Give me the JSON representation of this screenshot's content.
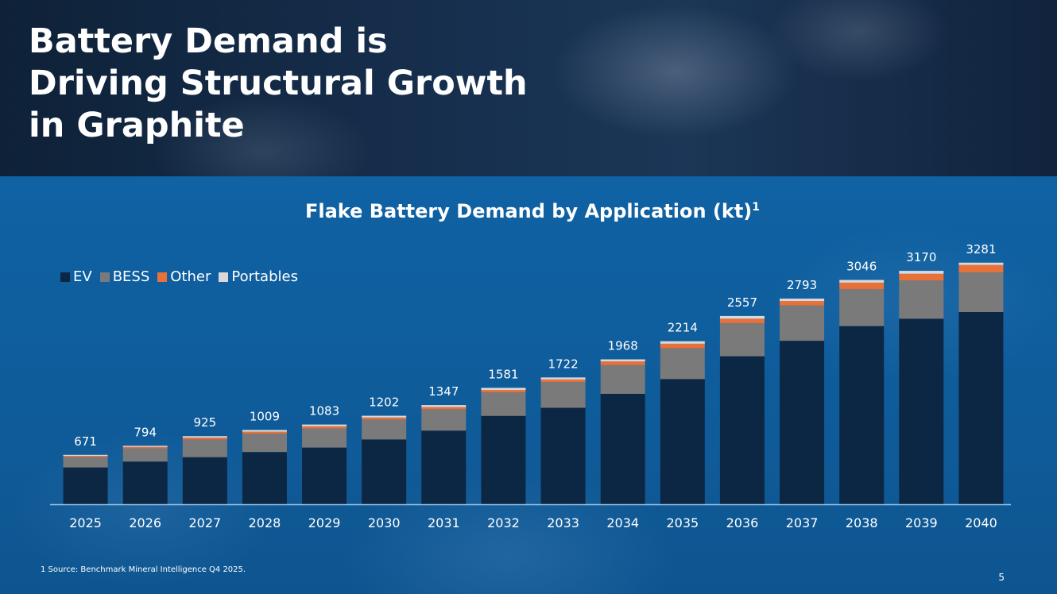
{
  "slide": {
    "title": "Battery Demand is Driving Structural Growth in Graphite",
    "footnote": "1 Source: Benchmark Mineral Intelligence Q4 2025.",
    "page_number": "5"
  },
  "colors": {
    "EV": "#0c2744",
    "BESS": "#7a7a7a",
    "Other": "#e8713a",
    "Portables": "#d9d9d9",
    "axis": "#9fc4e6",
    "label": "#ffffff"
  },
  "chart_data": {
    "type": "bar",
    "stacked": true,
    "title": "Flake Battery Demand by Application (kt)",
    "title_superscript": "1",
    "legend_position": "top-left",
    "categories": [
      "2025",
      "2026",
      "2027",
      "2028",
      "2029",
      "2030",
      "2031",
      "2032",
      "2033",
      "2034",
      "2035",
      "2036",
      "2037",
      "2038",
      "2039",
      "2040"
    ],
    "totals": [
      "671",
      "794",
      "925",
      "1009",
      "1083",
      "1202",
      "1347",
      "1581",
      "1722",
      "1968",
      "2214",
      "2557",
      "2793",
      "3046",
      "3170",
      "3281"
    ],
    "series": [
      {
        "name": "EV",
        "values": [
          500,
          580,
          640,
          710,
          770,
          880,
          1000,
          1200,
          1310,
          1500,
          1700,
          2010,
          2220,
          2420,
          2520,
          2610
        ]
      },
      {
        "name": "BESS",
        "values": [
          140,
          180,
          240,
          250,
          260,
          270,
          290,
          320,
          350,
          390,
          420,
          450,
          480,
          500,
          520,
          540
        ]
      },
      {
        "name": "Other",
        "values": [
          16,
          18,
          25,
          25,
          29,
          28,
          30,
          32,
          35,
          50,
          60,
          60,
          60,
          90,
          90,
          100
        ]
      },
      {
        "name": "Portables",
        "values": [
          15,
          16,
          20,
          24,
          24,
          24,
          27,
          29,
          27,
          28,
          34,
          37,
          33,
          36,
          40,
          31
        ]
      }
    ],
    "ylim": [
      0,
      3300
    ],
    "xlabel": "",
    "ylabel": ""
  }
}
